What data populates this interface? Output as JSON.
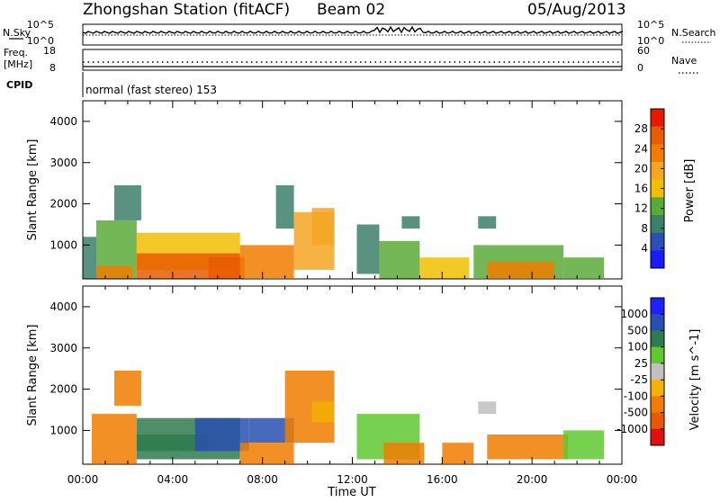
{
  "header": {
    "station": "Zhongshan Station (fitACF)",
    "beam": "Beam 02",
    "date": "05/Aug/2013"
  },
  "status": {
    "nsky_label": "N.Sky",
    "nsky_ticks": [
      "10^5",
      "10^0"
    ],
    "nsearch_label": "N.Search",
    "nsearch_ticks": [
      "10^5",
      "10^0"
    ],
    "freq_label": "Freq.",
    "freq_unit": "[MHz]",
    "freq_ticks": [
      "18",
      "8"
    ],
    "nave_label": "Nave",
    "nave_ticks": [
      "60",
      "0"
    ],
    "cpid_label": "CPID",
    "cpid_value": "normal (fast stereo) 153"
  },
  "colors": {
    "power": [
      "#1a1aff",
      "#2b4fb4",
      "#3c7f6b",
      "#5aaa3a",
      "#f0c000",
      "#f5a623",
      "#f07d00",
      "#e85c00",
      "#e51a00"
    ],
    "velocity": [
      "#2020ff",
      "#2850b0",
      "#2f7a4f",
      "#5fc830",
      "#c0c0c0",
      "#f5b000",
      "#f07d00",
      "#e85800",
      "#e01010"
    ]
  },
  "chart_data": [
    {
      "type": "heatmap",
      "parameter": "power",
      "ylabel": "Slant Range [km]",
      "xlabel": "",
      "ylim": [
        180,
        4500
      ],
      "xlim": [
        0,
        24
      ],
      "yticks": [
        "1000",
        "2000",
        "3000",
        "4000"
      ],
      "xticks": [
        "00:00",
        "04:00",
        "08:00",
        "12:00",
        "16:00",
        "20:00",
        "00:00"
      ],
      "colorbar": {
        "label": "Power [dB]",
        "range": [
          0,
          32
        ],
        "ticks": [
          "4",
          "8",
          "12",
          "16",
          "20",
          "24",
          "28"
        ]
      },
      "cells": [
        {
          "t0": 0.0,
          "t1": 0.6,
          "r0": 180,
          "r1": 1200,
          "v": 10
        },
        {
          "t0": 0.6,
          "t1": 2.4,
          "r0": 180,
          "r1": 1600,
          "v": 14
        },
        {
          "t0": 0.6,
          "t1": 2.2,
          "r0": 180,
          "r1": 500,
          "v": 24
        },
        {
          "t0": 1.4,
          "t1": 2.6,
          "r0": 1600,
          "r1": 2450,
          "v": 8
        },
        {
          "t0": 2.4,
          "t1": 7.0,
          "r0": 400,
          "r1": 1300,
          "v": 16
        },
        {
          "t0": 2.4,
          "t1": 7.0,
          "r0": 180,
          "r1": 800,
          "v": 25
        },
        {
          "t0": 5.6,
          "t1": 7.2,
          "r0": 180,
          "r1": 700,
          "v": 28
        },
        {
          "t0": 7.0,
          "t1": 9.4,
          "r0": 200,
          "r1": 1000,
          "v": 22
        },
        {
          "t0": 8.6,
          "t1": 9.4,
          "r0": 1400,
          "r1": 2450,
          "v": 8
        },
        {
          "t0": 9.4,
          "t1": 11.2,
          "r0": 400,
          "r1": 1800,
          "v": 18
        },
        {
          "t0": 10.2,
          "t1": 11.2,
          "r0": 1000,
          "r1": 1900,
          "v": 20
        },
        {
          "t0": 12.2,
          "t1": 13.2,
          "r0": 300,
          "r1": 1500,
          "v": 9
        },
        {
          "t0": 13.2,
          "t1": 15.0,
          "r0": 180,
          "r1": 1100,
          "v": 14
        },
        {
          "t0": 14.2,
          "t1": 15.0,
          "r0": 1400,
          "r1": 1700,
          "v": 9
        },
        {
          "t0": 15.0,
          "t1": 17.2,
          "r0": 180,
          "r1": 700,
          "v": 16
        },
        {
          "t0": 17.6,
          "t1": 18.4,
          "r0": 1400,
          "r1": 1700,
          "v": 9
        },
        {
          "t0": 17.4,
          "t1": 21.4,
          "r0": 200,
          "r1": 1000,
          "v": 14
        },
        {
          "t0": 18.0,
          "t1": 21.0,
          "r0": 200,
          "r1": 600,
          "v": 24
        },
        {
          "t0": 21.4,
          "t1": 23.2,
          "r0": 200,
          "r1": 700,
          "v": 13
        }
      ]
    },
    {
      "type": "heatmap",
      "parameter": "velocity",
      "ylabel": "Slant Range [km]",
      "xlabel": "Time UT",
      "ylim": [
        180,
        4500
      ],
      "xlim": [
        0,
        24
      ],
      "yticks": [
        "1000",
        "2000",
        "3000",
        "4000"
      ],
      "xticks": [
        "00:00",
        "04:00",
        "08:00",
        "12:00",
        "16:00",
        "20:00",
        "00:00"
      ],
      "colorbar": {
        "label": "Velocity [m s^-1]",
        "ticks": [
          "1000",
          "500",
          "100",
          "25",
          "-25",
          "-100",
          "-500",
          "-1000"
        ]
      },
      "cells": [
        {
          "t0": 0.4,
          "t1": 2.4,
          "r0": 200,
          "r1": 1400,
          "v": -120
        },
        {
          "t0": 1.4,
          "t1": 2.6,
          "r0": 1600,
          "r1": 2450,
          "v": -200
        },
        {
          "t0": 2.4,
          "t1": 7.0,
          "r0": 300,
          "r1": 1300,
          "v": 200
        },
        {
          "t0": 2.4,
          "t1": 5.6,
          "r0": 500,
          "r1": 900,
          "v": 400
        },
        {
          "t0": 5.0,
          "t1": 7.4,
          "r0": 500,
          "r1": 1300,
          "v": 700
        },
        {
          "t0": 7.4,
          "t1": 9.4,
          "r0": 700,
          "r1": 1300,
          "v": 600
        },
        {
          "t0": 7.0,
          "t1": 9.4,
          "r0": 200,
          "r1": 700,
          "v": -120
        },
        {
          "t0": 9.0,
          "t1": 11.2,
          "r0": 700,
          "r1": 2450,
          "v": -150
        },
        {
          "t0": 10.2,
          "t1": 11.2,
          "r0": 1200,
          "r1": 1700,
          "v": -60
        },
        {
          "t0": 12.2,
          "t1": 15.0,
          "r0": 300,
          "r1": 1400,
          "v": 40
        },
        {
          "t0": 13.4,
          "t1": 15.2,
          "r0": 200,
          "r1": 700,
          "v": -130
        },
        {
          "t0": 16.0,
          "t1": 17.4,
          "r0": 200,
          "r1": 700,
          "v": -130
        },
        {
          "t0": 17.6,
          "t1": 18.4,
          "r0": 1400,
          "r1": 1700,
          "v": 20
        },
        {
          "t0": 18.0,
          "t1": 21.6,
          "r0": 300,
          "r1": 900,
          "v": -160
        },
        {
          "t0": 21.4,
          "t1": 23.2,
          "r0": 300,
          "r1": 1000,
          "v": 60
        }
      ]
    }
  ]
}
